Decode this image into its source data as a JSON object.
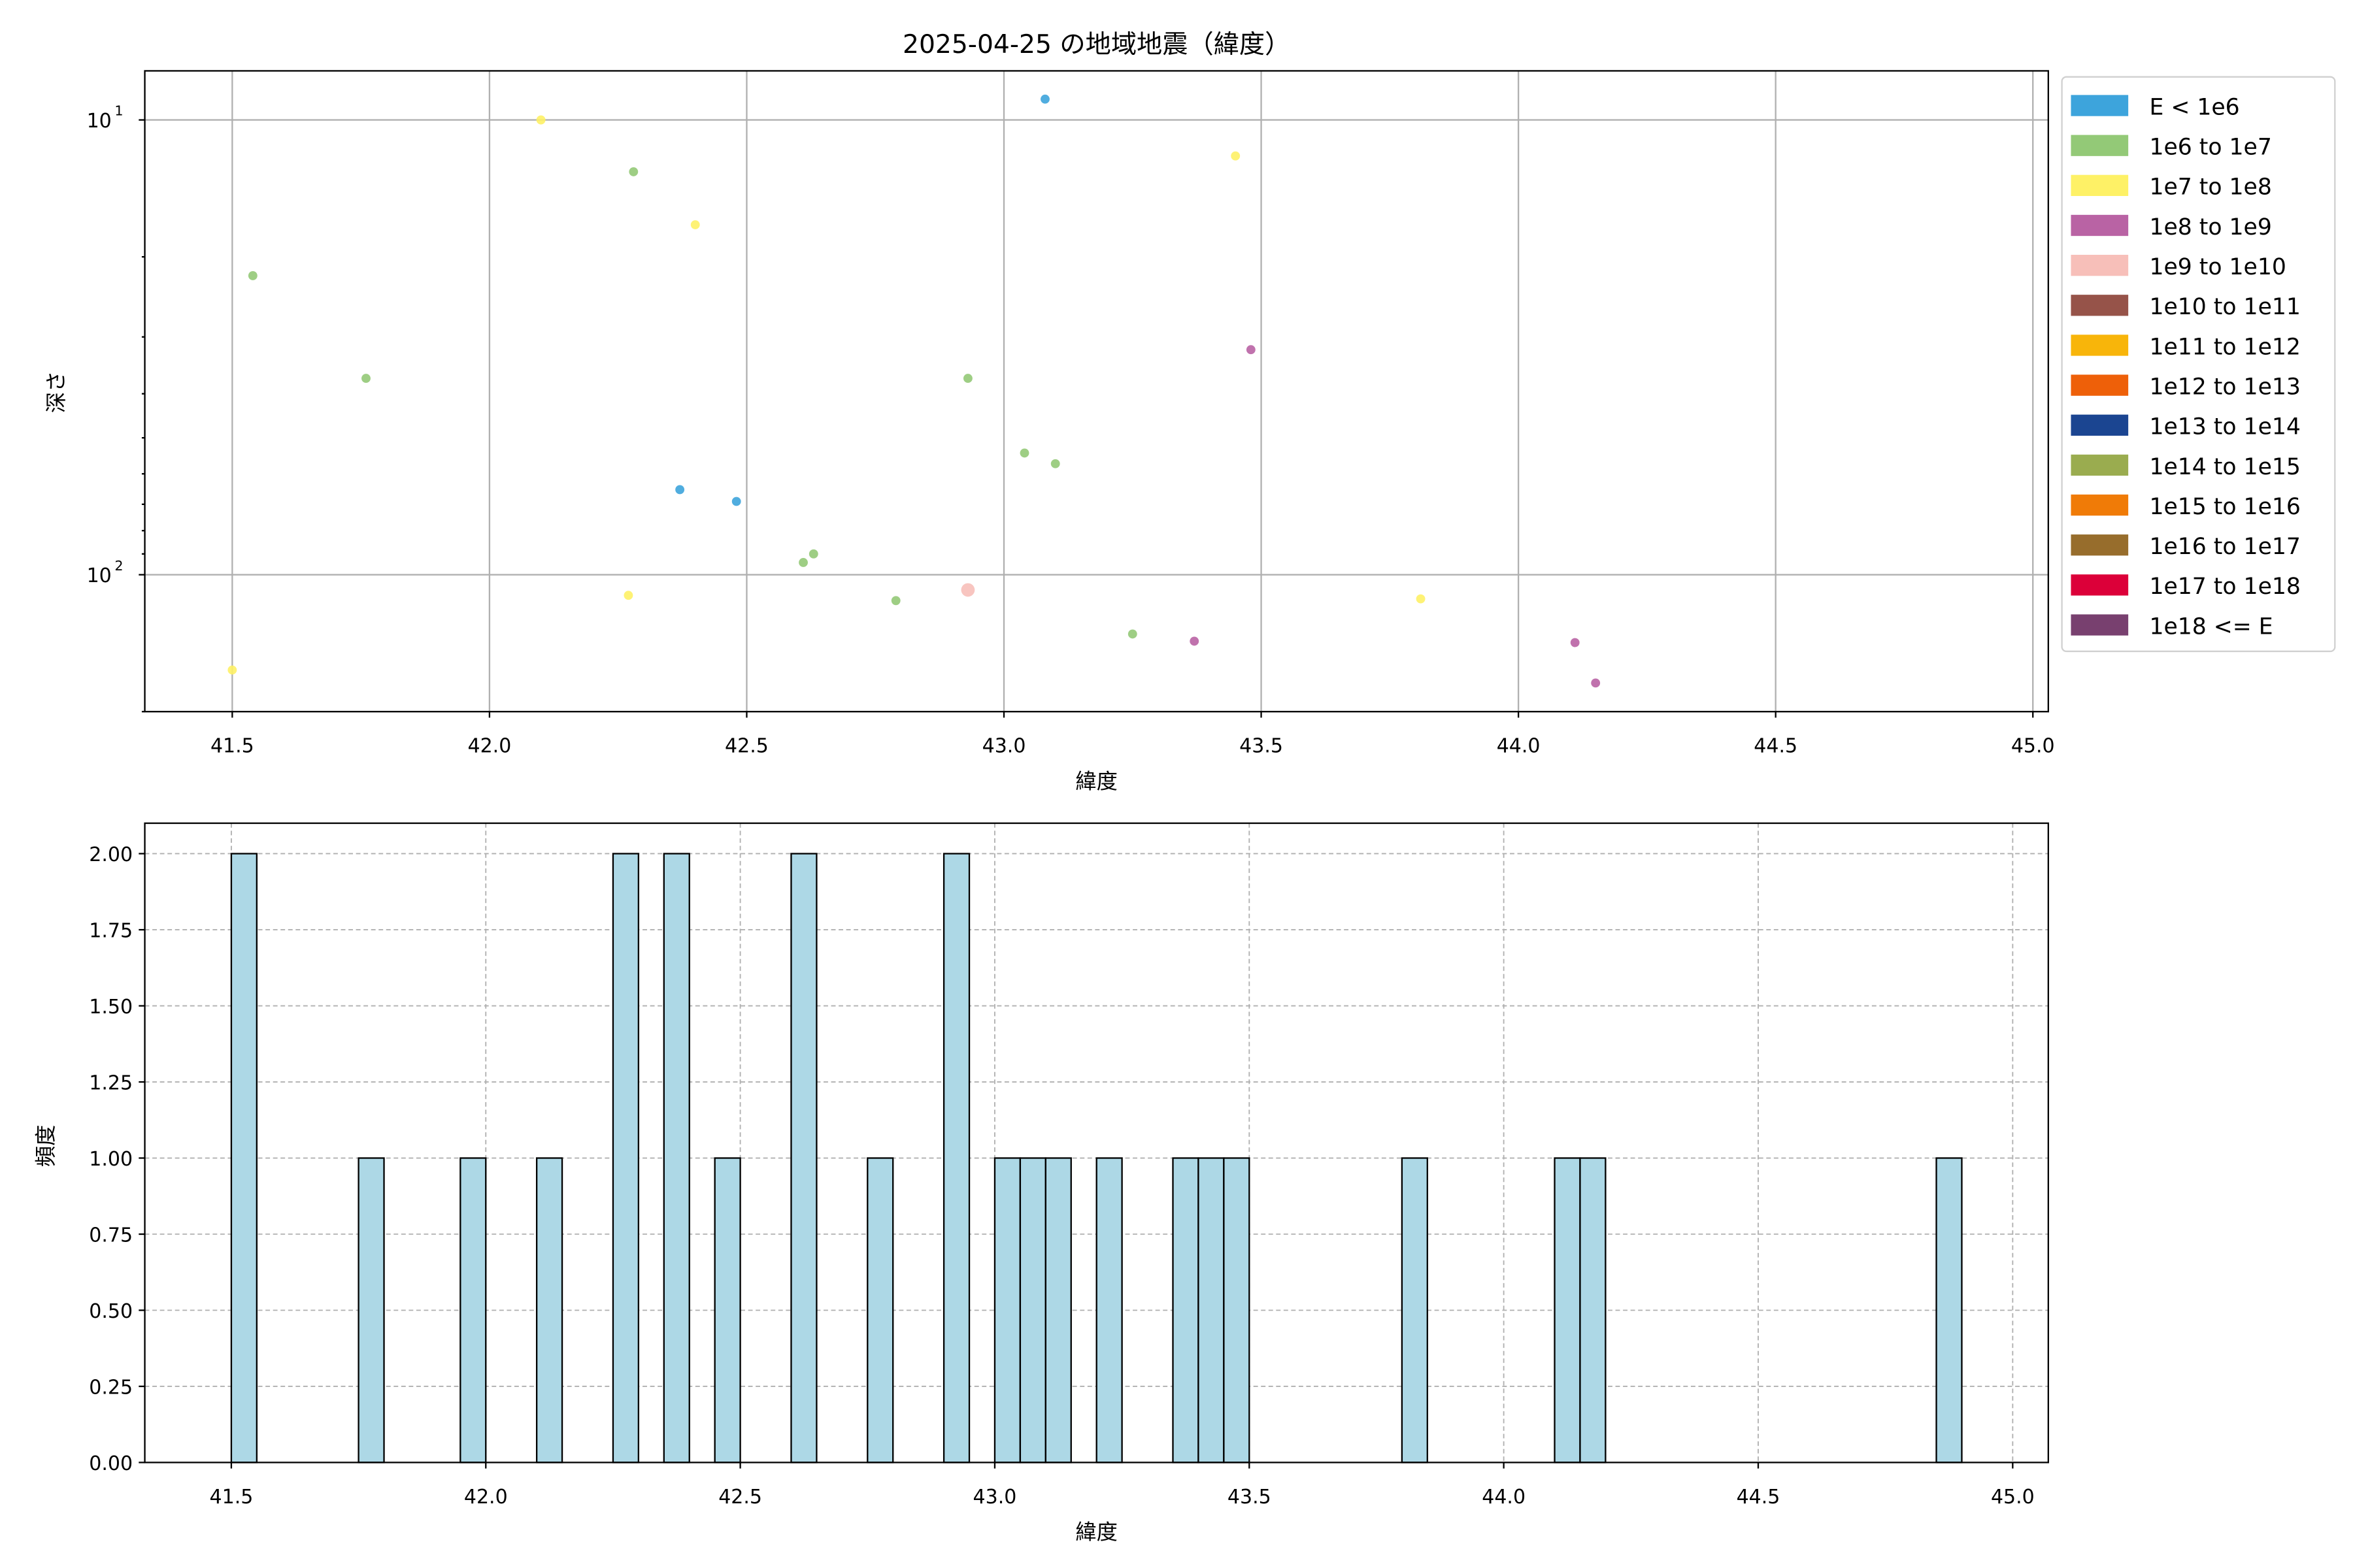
{
  "chart_data": [
    {
      "type": "scatter",
      "title": "2025-04-25 の地域地震（緯度）",
      "xlabel": "緯度",
      "ylabel": "深さ",
      "xlim": [
        41.33,
        45.03
      ],
      "ylim": [
        7.8,
        200
      ],
      "yscale": "log",
      "y_inverted": true,
      "grid": true,
      "legend_placement": "outside-right",
      "xticks": [
        "41.5",
        "42.0",
        "42.5",
        "43.0",
        "43.5",
        "44.0",
        "44.5",
        "45.0"
      ],
      "yticks": [
        {
          "value": 10,
          "label": "10",
          "exp": "1"
        },
        {
          "value": 100,
          "label": "10",
          "exp": "2"
        }
      ],
      "legend": [
        {
          "label": "E < 1e6",
          "color": "#3da4dc"
        },
        {
          "label": "1e6 to 1e7",
          "color": "#93c977"
        },
        {
          "label": "1e7 to 1e8",
          "color": "#fef166"
        },
        {
          "label": "1e8 to 1e9",
          "color": "#b963a4"
        },
        {
          "label": "1e9 to 1e10",
          "color": "#f7bfb9"
        },
        {
          "label": "1e10 to 1e11",
          "color": "#965349"
        },
        {
          "label": "1e11 to 1e12",
          "color": "#f8b50a"
        },
        {
          "label": "1e12 to 1e13",
          "color": "#ee6009"
        },
        {
          "label": "1e13 to 1e14",
          "color": "#1b4591"
        },
        {
          "label": "1e14 to 1e15",
          "color": "#9aac4f"
        },
        {
          "label": "1e15 to 1e16",
          "color": "#f07b07"
        },
        {
          "label": "1e16 to 1e17",
          "color": "#976d2c"
        },
        {
          "label": "1e17 to 1e18",
          "color": "#dc0039"
        },
        {
          "label": "1e18 <= E",
          "color": "#78406f"
        }
      ],
      "points": [
        {
          "x": 43.08,
          "y": 9.0,
          "class": 0
        },
        {
          "x": 42.1,
          "y": 10,
          "class": 2
        },
        {
          "x": 43.45,
          "y": 12,
          "class": 2
        },
        {
          "x": 42.28,
          "y": 13,
          "class": 1
        },
        {
          "x": 42.4,
          "y": 17,
          "class": 2
        },
        {
          "x": 41.54,
          "y": 22,
          "class": 1
        },
        {
          "x": 43.48,
          "y": 32,
          "class": 3
        },
        {
          "x": 41.76,
          "y": 37,
          "class": 1
        },
        {
          "x": 42.93,
          "y": 37,
          "class": 1
        },
        {
          "x": 43.04,
          "y": 54,
          "class": 1
        },
        {
          "x": 43.1,
          "y": 57,
          "class": 1
        },
        {
          "x": 42.37,
          "y": 65,
          "class": 0
        },
        {
          "x": 42.48,
          "y": 69,
          "class": 0
        },
        {
          "x": 42.63,
          "y": 90,
          "class": 1
        },
        {
          "x": 42.61,
          "y": 94,
          "class": 1
        },
        {
          "x": 42.27,
          "y": 111,
          "class": 2
        },
        {
          "x": 42.93,
          "y": 108,
          "class": 4
        },
        {
          "x": 42.79,
          "y": 114,
          "class": 1
        },
        {
          "x": 43.81,
          "y": 113,
          "class": 2
        },
        {
          "x": 43.25,
          "y": 135,
          "class": 1
        },
        {
          "x": 43.37,
          "y": 140,
          "class": 3
        },
        {
          "x": 44.11,
          "y": 141,
          "class": 3
        },
        {
          "x": 41.5,
          "y": 162,
          "class": 2
        },
        {
          "x": 44.15,
          "y": 173,
          "class": 3
        }
      ]
    },
    {
      "type": "bar",
      "subtype": "histogram",
      "xlabel": "緯度",
      "ylabel": "頻度",
      "xlim": [
        41.33,
        45.07
      ],
      "ylim": [
        0,
        2.1
      ],
      "grid": true,
      "bar_color": "#add8e6",
      "bin_width": 0.05,
      "xticks": [
        "41.5",
        "42.0",
        "42.5",
        "43.0",
        "43.5",
        "44.0",
        "44.5",
        "45.0"
      ],
      "yticks": [
        "0.00",
        "0.25",
        "0.50",
        "0.75",
        "1.00",
        "1.25",
        "1.50",
        "1.75",
        "2.00"
      ],
      "bins": [
        {
          "start": 41.5,
          "count": 2
        },
        {
          "start": 41.75,
          "count": 1
        },
        {
          "start": 41.95,
          "count": 1
        },
        {
          "start": 42.1,
          "count": 1
        },
        {
          "start": 42.25,
          "count": 2
        },
        {
          "start": 42.35,
          "count": 2
        },
        {
          "start": 42.45,
          "count": 1
        },
        {
          "start": 42.6,
          "count": 2
        },
        {
          "start": 42.75,
          "count": 1
        },
        {
          "start": 42.9,
          "count": 2
        },
        {
          "start": 43.0,
          "count": 1
        },
        {
          "start": 43.05,
          "count": 1
        },
        {
          "start": 43.1,
          "count": 1
        },
        {
          "start": 43.2,
          "count": 1
        },
        {
          "start": 43.35,
          "count": 1
        },
        {
          "start": 43.4,
          "count": 1
        },
        {
          "start": 43.45,
          "count": 1
        },
        {
          "start": 43.8,
          "count": 1
        },
        {
          "start": 44.1,
          "count": 1
        },
        {
          "start": 44.15,
          "count": 1
        },
        {
          "start": 44.85,
          "count": 1
        }
      ]
    }
  ]
}
